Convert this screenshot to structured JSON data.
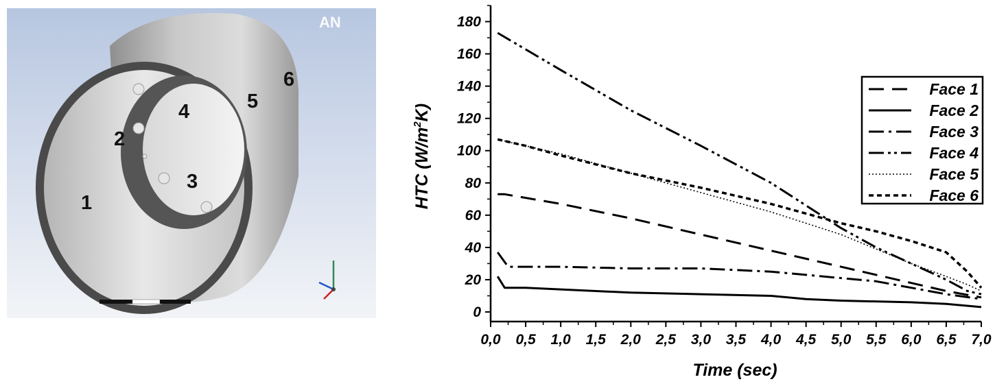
{
  "model_view": {
    "face_labels": [
      "1",
      "2",
      "3",
      "4",
      "5",
      "6"
    ],
    "watermark": "AN"
  },
  "chart_data": {
    "type": "line",
    "title": "",
    "xlabel": "Time (sec)",
    "ylabel_main": "HTC (W/m",
    "ylabel_sup": "2",
    "ylabel_tail": "K)",
    "xlim": [
      0,
      7
    ],
    "ylim": [
      0,
      190
    ],
    "x_ticks": [
      "0,0",
      "0,5",
      "1,0",
      "1,5",
      "2,0",
      "2,5",
      "3,0",
      "3,5",
      "4,0",
      "4,5",
      "5,0",
      "5,5",
      "6,0",
      "6,5",
      "7,0"
    ],
    "y_ticks": [
      "0",
      "20",
      "40",
      "60",
      "80",
      "100",
      "120",
      "140",
      "160",
      "180"
    ],
    "grid": false,
    "legend_position": "right",
    "series": [
      {
        "name": "Face 1",
        "dash": "22,12",
        "width": 3,
        "x": [
          0.1,
          0.2,
          1.0,
          2.0,
          3.0,
          4.0,
          5.0,
          6.0,
          6.5,
          7.0
        ],
        "y": [
          73,
          73,
          67,
          58,
          48,
          38,
          28,
          18,
          13,
          9
        ]
      },
      {
        "name": "Face 2",
        "dash": "",
        "width": 3,
        "x": [
          0.1,
          0.2,
          0.5,
          1.0,
          2.0,
          3.0,
          4.0,
          4.5,
          5.0,
          6.0,
          6.5,
          7.0
        ],
        "y": [
          22,
          15,
          15,
          14,
          12,
          11,
          10,
          8,
          7,
          6,
          5,
          3
        ]
      },
      {
        "name": "Face 3",
        "dash": "22,7,4,7",
        "width": 3,
        "x": [
          0.1,
          0.25,
          0.5,
          1.0,
          2.0,
          3.0,
          4.0,
          4.5,
          5.0,
          5.5,
          6.0,
          6.5,
          7.0
        ],
        "y": [
          37,
          28,
          28,
          28,
          27,
          27,
          25,
          23,
          21,
          19,
          15,
          11,
          8
        ]
      },
      {
        "name": "Face 4",
        "dash": "22,6,4,5,4,6",
        "width": 3,
        "x": [
          0.1,
          1.0,
          2.0,
          3.0,
          4.0,
          5.0,
          5.5,
          6.0,
          6.5,
          6.8,
          7.0
        ],
        "y": [
          173,
          150,
          125,
          103,
          80,
          52,
          40,
          30,
          20,
          13,
          11
        ]
      },
      {
        "name": "Face 5",
        "dash": "2,3",
        "width": 1.6,
        "x": [
          0.1,
          0.5,
          1.0,
          2.0,
          3.0,
          4.0,
          5.0,
          6.0,
          6.5,
          6.8,
          7.0
        ],
        "y": [
          107,
          103,
          98,
          86,
          74,
          62,
          48,
          30,
          22,
          17,
          13
        ]
      },
      {
        "name": "Face 6",
        "dash": "7,5",
        "width": 3.5,
        "x": [
          0.1,
          0.5,
          1.0,
          2.0,
          3.0,
          4.0,
          5.0,
          5.5,
          6.0,
          6.5,
          6.8,
          7.0
        ],
        "y": [
          107,
          103,
          97,
          86,
          77,
          67,
          55,
          50,
          44,
          37,
          25,
          15
        ]
      }
    ]
  }
}
